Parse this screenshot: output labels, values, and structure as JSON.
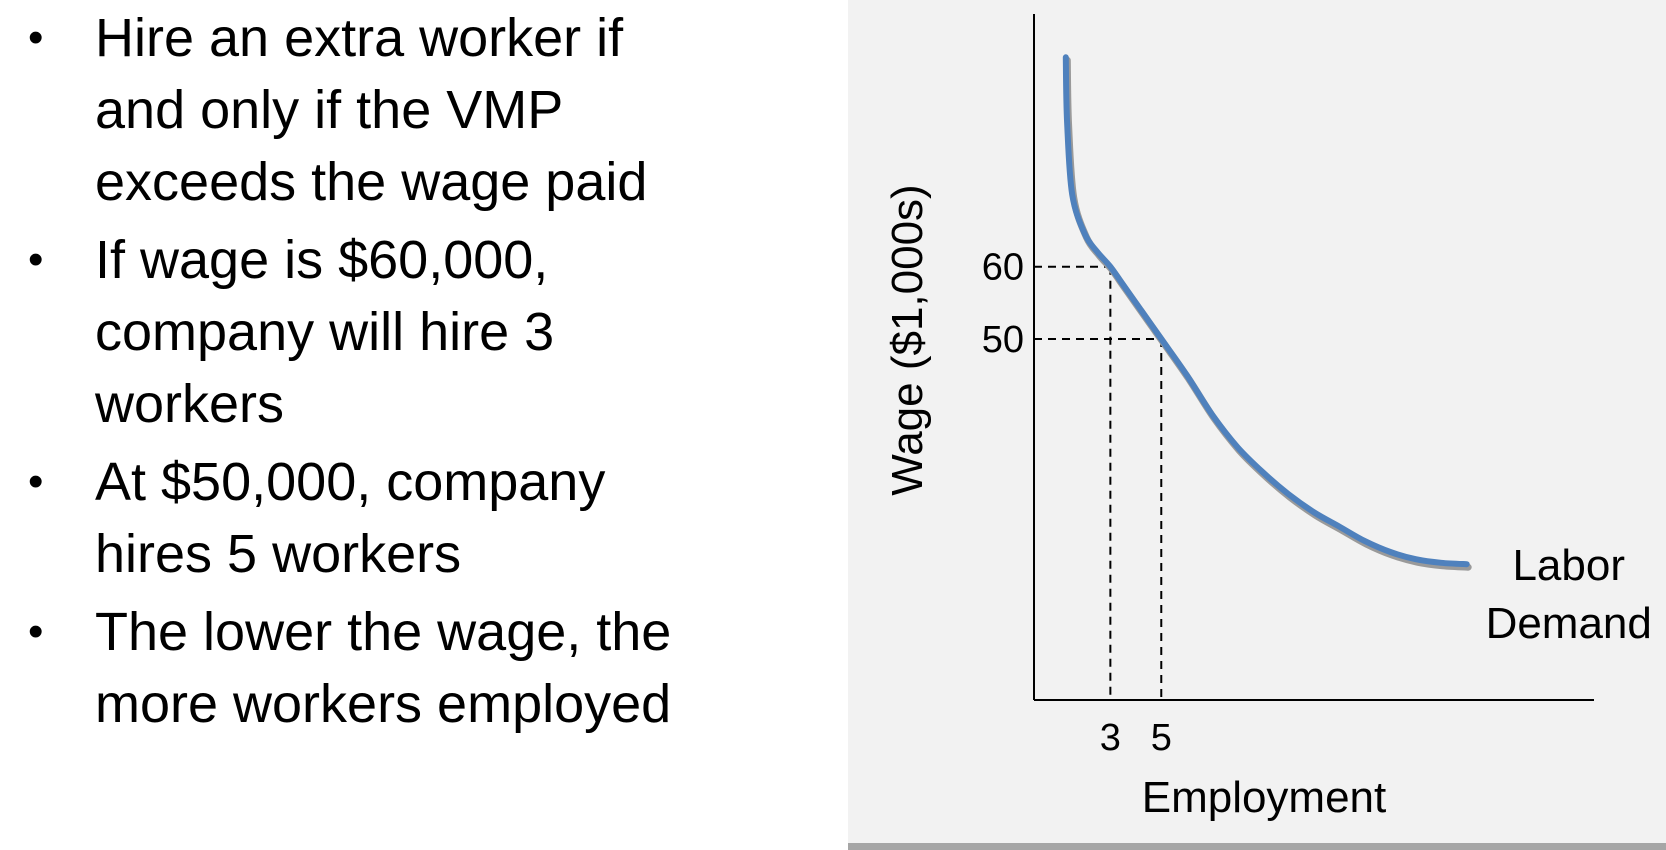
{
  "bullets": [
    "Hire an extra worker if and only if the VMP exceeds the wage paid",
    "If wage is $60,000, company will hire 3 workers",
    "At $50,000, company hires 5 workers",
    "The lower the wage, the more workers employed"
  ],
  "bullet_lines": [
    [
      "Hire an extra worker if",
      "and only if the VMP",
      "exceeds the wage paid"
    ],
    [
      "If wage is $60,000,",
      "company will hire 3",
      "workers"
    ],
    [
      "At $50,000, company",
      "hires 5 workers"
    ],
    [
      "The lower the wage, the",
      "more workers employed"
    ]
  ],
  "chart_data": {
    "type": "line",
    "xlabel": "Employment",
    "ylabel": "Wage ($1,000s)",
    "x_ticks": [
      3,
      5
    ],
    "y_ticks": [
      60,
      50
    ],
    "x_tick_labels": [
      "3",
      "5"
    ],
    "y_tick_labels": [
      "60",
      "50"
    ],
    "xlim": [
      0,
      22
    ],
    "ylim": [
      0,
      95
    ],
    "grid": false,
    "series": [
      {
        "name": "Labor Demand",
        "color": "#4f81bd",
        "x": [
          1.25,
          1.3,
          1.5,
          2.0,
          2.5,
          3.0,
          3.5,
          4.0,
          5.0,
          6.0,
          7.0,
          8.0,
          9.0,
          10.0,
          11.0,
          12.0,
          13.0,
          14.0,
          15.0,
          16.0,
          17.0
        ],
        "y": [
          89,
          80,
          70,
          64.5,
          62,
          60,
          57.5,
          55,
          50,
          45,
          39.5,
          35,
          31.5,
          28.5,
          26,
          24,
          22,
          20.5,
          19.5,
          19,
          18.8
        ]
      }
    ],
    "reference_points": [
      {
        "x": 3,
        "y": 60
      },
      {
        "x": 5,
        "y": 50
      }
    ],
    "line_label": [
      "Labor",
      "Demand"
    ]
  }
}
